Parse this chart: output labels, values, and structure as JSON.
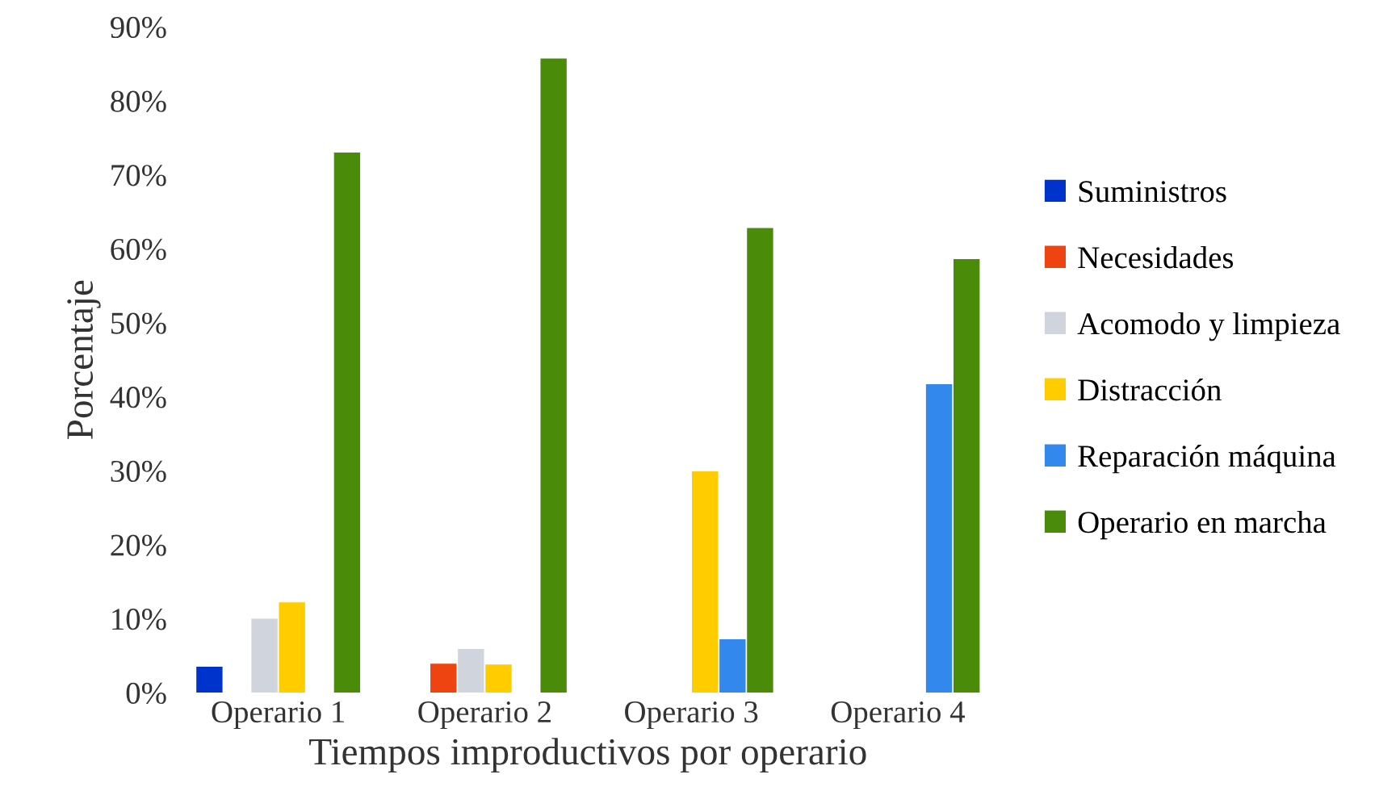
{
  "chart_data": {
    "type": "bar",
    "xlabel": "Tiempos improductivos por operario",
    "ylabel": "Porcentaje",
    "categories": [
      "Operario 1",
      "Operario 2",
      "Operario 3",
      "Operario 4"
    ],
    "series": [
      {
        "name": "Suministros",
        "color": "#0033cc",
        "values": [
          3.5,
          0,
          0,
          0
        ]
      },
      {
        "name": "Necesidades",
        "color": "#ee4411",
        "values": [
          0,
          3.9,
          0,
          0
        ]
      },
      {
        "name": "Acomodo y limpieza",
        "color": "#d0d4dc",
        "values": [
          10.0,
          5.9,
          0,
          0
        ]
      },
      {
        "name": "Distracción",
        "color": "#ffcc00",
        "values": [
          12.2,
          3.8,
          29.9,
          0
        ]
      },
      {
        "name": "Reparación máquina",
        "color": "#3388ee",
        "values": [
          0,
          0,
          7.2,
          41.7
        ]
      },
      {
        "name": "Operario en marcha",
        "color": "#4a8c0a",
        "values": [
          73.0,
          85.7,
          62.8,
          58.6
        ]
      }
    ],
    "ylim": [
      0,
      90
    ],
    "yticks": [
      {
        "value": 0,
        "label": "0%"
      },
      {
        "value": 10,
        "label": "10%"
      },
      {
        "value": 20,
        "label": "20%"
      },
      {
        "value": 30,
        "label": "30%"
      },
      {
        "value": 40,
        "label": "40%"
      },
      {
        "value": 50,
        "label": "50%"
      },
      {
        "value": 60,
        "label": "60%"
      },
      {
        "value": 70,
        "label": "70%"
      },
      {
        "value": 80,
        "label": "80%"
      },
      {
        "value": 90,
        "label": "90%"
      }
    ],
    "grid": false,
    "legend": "right"
  }
}
